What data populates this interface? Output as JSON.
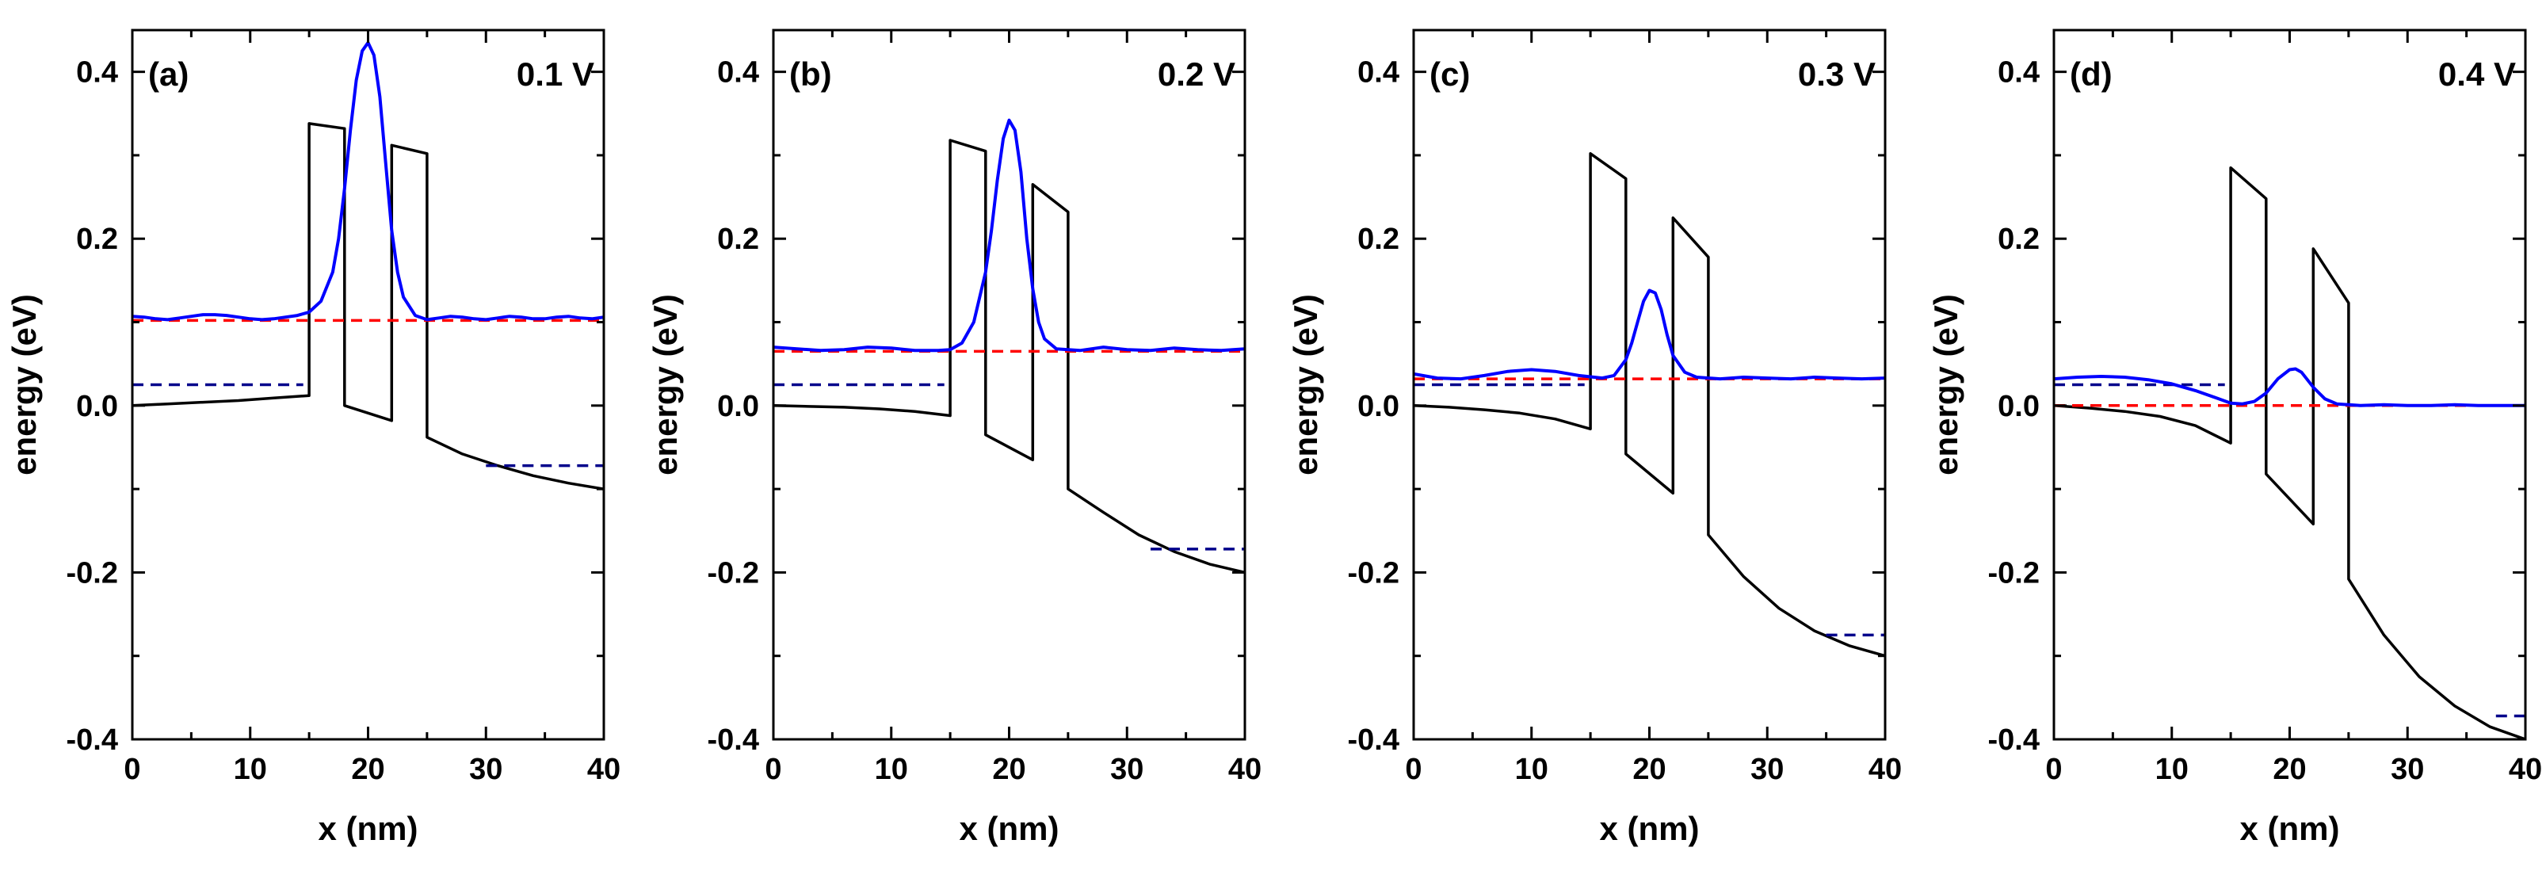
{
  "figure": {
    "panels": 4,
    "colors": {
      "band": "#000000",
      "wave": "#0000ff",
      "fermi": "#ff0000",
      "contact": "#00008b"
    }
  },
  "chart_data": [
    {
      "type": "line",
      "panel_label": "(a)",
      "bias_label": "0.1 V",
      "xlabel": "x (nm)",
      "ylabel": "energy (eV)",
      "xlim": [
        0,
        40
      ],
      "ylim": [
        -0.4,
        0.45
      ],
      "xticks": [
        0,
        10,
        20,
        30,
        40
      ],
      "yticks": [
        -0.4,
        -0.2,
        0.0,
        0.2,
        0.4
      ],
      "x_tick_labels": [
        "0",
        "10",
        "20",
        "30",
        "40"
      ],
      "y_tick_labels": [
        "-0.4",
        "-0.2",
        "0.0",
        "0.2",
        "0.4"
      ],
      "series": [
        {
          "name": "band profile",
          "style": "solid",
          "color": "#000000",
          "x": [
            0,
            3,
            6,
            9,
            12,
            15,
            15,
            18,
            18,
            22,
            22,
            25,
            25,
            28,
            31,
            34,
            37,
            40
          ],
          "y": [
            0.0,
            0.002,
            0.004,
            0.006,
            0.009,
            0.012,
            0.338,
            0.332,
            0.0,
            -0.018,
            0.312,
            0.302,
            -0.038,
            -0.058,
            -0.072,
            -0.084,
            -0.093,
            -0.1
          ]
        },
        {
          "name": "Fermi level",
          "style": "dashed",
          "color": "#ff0000",
          "x": [
            0,
            40
          ],
          "y": [
            0.102,
            0.102
          ]
        },
        {
          "name": "left contact level",
          "style": "dashed",
          "color": "#00008b",
          "x": [
            0,
            14.5
          ],
          "y": [
            0.025,
            0.025
          ]
        },
        {
          "name": "right contact level",
          "style": "dashed",
          "color": "#00008b",
          "x": [
            30,
            40
          ],
          "y": [
            -0.072,
            -0.072
          ]
        },
        {
          "name": "density",
          "style": "solid",
          "color": "#0000ff",
          "x": [
            0,
            1,
            2,
            3,
            4,
            5,
            6,
            7,
            8,
            9,
            10,
            11,
            12,
            13,
            14,
            15,
            16,
            17,
            17.5,
            18,
            18.5,
            19,
            19.5,
            20,
            20.5,
            21,
            21.5,
            22,
            22.5,
            23,
            24,
            25,
            26,
            27,
            28,
            29,
            30,
            31,
            32,
            33,
            34,
            35,
            36,
            37,
            38,
            39,
            40
          ],
          "y": [
            0.107,
            0.106,
            0.104,
            0.103,
            0.105,
            0.107,
            0.109,
            0.109,
            0.108,
            0.106,
            0.104,
            0.103,
            0.104,
            0.106,
            0.108,
            0.112,
            0.125,
            0.16,
            0.2,
            0.26,
            0.33,
            0.39,
            0.425,
            0.435,
            0.42,
            0.37,
            0.29,
            0.21,
            0.16,
            0.13,
            0.108,
            0.103,
            0.105,
            0.107,
            0.106,
            0.104,
            0.103,
            0.105,
            0.107,
            0.106,
            0.104,
            0.104,
            0.106,
            0.107,
            0.105,
            0.104,
            0.106
          ]
        }
      ]
    },
    {
      "type": "line",
      "panel_label": "(b)",
      "bias_label": "0.2 V",
      "xlabel": "x (nm)",
      "ylabel": "energy (eV)",
      "xlim": [
        0,
        40
      ],
      "ylim": [
        -0.4,
        0.45
      ],
      "xticks": [
        0,
        10,
        20,
        30,
        40
      ],
      "yticks": [
        -0.4,
        -0.2,
        0.0,
        0.2,
        0.4
      ],
      "x_tick_labels": [
        "0",
        "10",
        "20",
        "30",
        "40"
      ],
      "y_tick_labels": [
        "-0.4",
        "-0.2",
        "0.0",
        "0.2",
        "0.4"
      ],
      "series": [
        {
          "name": "band profile",
          "style": "solid",
          "color": "#000000",
          "x": [
            0,
            3,
            6,
            9,
            12,
            15,
            15,
            18,
            18,
            22,
            22,
            25,
            25,
            28,
            31,
            34,
            37,
            40
          ],
          "y": [
            0.0,
            -0.001,
            -0.002,
            -0.004,
            -0.007,
            -0.012,
            0.318,
            0.305,
            -0.035,
            -0.065,
            0.265,
            0.232,
            -0.1,
            -0.128,
            -0.155,
            -0.175,
            -0.19,
            -0.2
          ]
        },
        {
          "name": "Fermi level",
          "style": "dashed",
          "color": "#ff0000",
          "x": [
            0,
            40
          ],
          "y": [
            0.065,
            0.065
          ]
        },
        {
          "name": "left contact level",
          "style": "dashed",
          "color": "#00008b",
          "x": [
            0,
            14.5
          ],
          "y": [
            0.025,
            0.025
          ]
        },
        {
          "name": "right contact level",
          "style": "dashed",
          "color": "#00008b",
          "x": [
            32,
            40
          ],
          "y": [
            -0.172,
            -0.172
          ]
        },
        {
          "name": "density",
          "style": "solid",
          "color": "#0000ff",
          "x": [
            0,
            2,
            4,
            6,
            8,
            10,
            12,
            14,
            15,
            16,
            17,
            18,
            18.5,
            19,
            19.5,
            20,
            20.5,
            21,
            21.5,
            22,
            22.5,
            23,
            24,
            26,
            28,
            30,
            32,
            34,
            36,
            38,
            40
          ],
          "y": [
            0.07,
            0.068,
            0.066,
            0.067,
            0.07,
            0.069,
            0.066,
            0.066,
            0.067,
            0.075,
            0.1,
            0.16,
            0.21,
            0.27,
            0.32,
            0.342,
            0.33,
            0.28,
            0.2,
            0.14,
            0.1,
            0.08,
            0.068,
            0.066,
            0.07,
            0.067,
            0.066,
            0.069,
            0.067,
            0.066,
            0.068
          ]
        }
      ]
    },
    {
      "type": "line",
      "panel_label": "(c)",
      "bias_label": "0.3 V",
      "xlabel": "x (nm)",
      "ylabel": "energy (eV)",
      "xlim": [
        0,
        40
      ],
      "ylim": [
        -0.4,
        0.45
      ],
      "xticks": [
        0,
        10,
        20,
        30,
        40
      ],
      "yticks": [
        -0.4,
        -0.2,
        0.0,
        0.2,
        0.4
      ],
      "x_tick_labels": [
        "0",
        "10",
        "20",
        "30",
        "40"
      ],
      "y_tick_labels": [
        "-0.4",
        "-0.2",
        "0.0",
        "0.2",
        "0.4"
      ],
      "series": [
        {
          "name": "band profile",
          "style": "solid",
          "color": "#000000",
          "x": [
            0,
            3,
            6,
            9,
            12,
            15,
            15,
            18,
            18,
            22,
            22,
            25,
            25,
            28,
            31,
            34,
            37,
            40
          ],
          "y": [
            0.0,
            -0.002,
            -0.005,
            -0.009,
            -0.016,
            -0.028,
            0.302,
            0.272,
            -0.058,
            -0.105,
            0.225,
            0.178,
            -0.155,
            -0.205,
            -0.243,
            -0.27,
            -0.288,
            -0.3
          ]
        },
        {
          "name": "Fermi level",
          "style": "dashed",
          "color": "#ff0000",
          "x": [
            0,
            40
          ],
          "y": [
            0.032,
            0.032
          ]
        },
        {
          "name": "left contact level",
          "style": "dashed",
          "color": "#00008b",
          "x": [
            0,
            14.5
          ],
          "y": [
            0.025,
            0.025
          ]
        },
        {
          "name": "right contact level",
          "style": "dashed",
          "color": "#00008b",
          "x": [
            35,
            40
          ],
          "y": [
            -0.275,
            -0.275
          ]
        },
        {
          "name": "density",
          "style": "solid",
          "color": "#0000ff",
          "x": [
            0,
            2,
            4,
            6,
            8,
            10,
            12,
            14,
            16,
            17,
            18,
            18.5,
            19,
            19.5,
            20,
            20.5,
            21,
            21.5,
            22,
            23,
            24,
            26,
            28,
            30,
            32,
            34,
            36,
            38,
            40
          ],
          "y": [
            0.038,
            0.033,
            0.032,
            0.036,
            0.041,
            0.043,
            0.041,
            0.036,
            0.033,
            0.036,
            0.055,
            0.075,
            0.1,
            0.125,
            0.138,
            0.135,
            0.115,
            0.085,
            0.06,
            0.04,
            0.034,
            0.032,
            0.034,
            0.033,
            0.032,
            0.034,
            0.033,
            0.032,
            0.033
          ]
        }
      ]
    },
    {
      "type": "line",
      "panel_label": "(d)",
      "bias_label": "0.4 V",
      "xlabel": "x (nm)",
      "ylabel": "energy (eV)",
      "xlim": [
        0,
        40
      ],
      "ylim": [
        -0.4,
        0.45
      ],
      "xticks": [
        0,
        10,
        20,
        30,
        40
      ],
      "yticks": [
        -0.4,
        -0.2,
        0.0,
        0.2,
        0.4
      ],
      "x_tick_labels": [
        "0",
        "10",
        "20",
        "30",
        "40"
      ],
      "y_tick_labels": [
        "-0.4",
        "-0.2",
        "0.0",
        "0.2",
        "0.4"
      ],
      "series": [
        {
          "name": "band profile",
          "style": "solid",
          "color": "#000000",
          "x": [
            0,
            3,
            6,
            9,
            12,
            15,
            15,
            18,
            18,
            22,
            22,
            25,
            25,
            28,
            31,
            34,
            37,
            40
          ],
          "y": [
            0.0,
            -0.003,
            -0.007,
            -0.013,
            -0.024,
            -0.045,
            0.285,
            0.248,
            -0.082,
            -0.142,
            0.188,
            0.123,
            -0.208,
            -0.275,
            -0.325,
            -0.36,
            -0.385,
            -0.4
          ]
        },
        {
          "name": "Fermi level",
          "style": "dashed",
          "color": "#ff0000",
          "x": [
            0,
            40
          ],
          "y": [
            0.0,
            0.0
          ]
        },
        {
          "name": "left contact level",
          "style": "dashed",
          "color": "#00008b",
          "x": [
            0,
            14.5
          ],
          "y": [
            0.025,
            0.025
          ]
        },
        {
          "name": "right contact level",
          "style": "dashed",
          "color": "#00008b",
          "x": [
            37.5,
            40
          ],
          "y": [
            -0.372,
            -0.372
          ]
        },
        {
          "name": "density",
          "style": "solid",
          "color": "#0000ff",
          "x": [
            0,
            2,
            4,
            6,
            8,
            10,
            12,
            14,
            15,
            16,
            17,
            18,
            19,
            20,
            20.5,
            21,
            22,
            23,
            24,
            26,
            28,
            30,
            32,
            34,
            36,
            38,
            40
          ],
          "y": [
            0.032,
            0.034,
            0.035,
            0.034,
            0.031,
            0.026,
            0.018,
            0.008,
            0.003,
            0.002,
            0.005,
            0.015,
            0.032,
            0.043,
            0.044,
            0.04,
            0.022,
            0.008,
            0.002,
            0.0,
            0.001,
            0.0,
            0.0,
            0.001,
            0.0,
            0.0,
            0.0
          ]
        }
      ]
    }
  ]
}
